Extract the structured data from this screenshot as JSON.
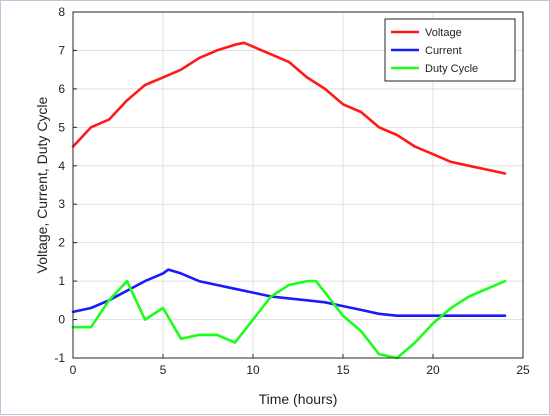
{
  "chart_data": {
    "type": "line",
    "title": "",
    "xlabel": "Time (hours)",
    "ylabel": "Voltage, Current, Duty Cycle",
    "xlim": [
      0,
      25
    ],
    "ylim": [
      -1,
      8
    ],
    "xticks": [
      0,
      5,
      10,
      15,
      20,
      25
    ],
    "yticks": [
      -1,
      0,
      1,
      2,
      3,
      4,
      5,
      6,
      7,
      8
    ],
    "grid": true,
    "legend_position": "top-right",
    "series": [
      {
        "name": "Voltage",
        "color": "#ff1a1a",
        "x": [
          0,
          1,
          2,
          3,
          4,
          5,
          6,
          7,
          8,
          9,
          9.5,
          10,
          11,
          12,
          13,
          14,
          15,
          16,
          17,
          18,
          19,
          20,
          21,
          22,
          23,
          24
        ],
        "values": [
          4.5,
          5.0,
          5.2,
          5.7,
          6.1,
          6.3,
          6.5,
          6.8,
          7.0,
          7.15,
          7.2,
          7.1,
          6.9,
          6.7,
          6.3,
          6.0,
          5.6,
          5.4,
          5.0,
          4.8,
          4.5,
          4.3,
          4.1,
          4.0,
          3.9,
          3.8
        ]
      },
      {
        "name": "Current",
        "color": "#1a1aff",
        "x": [
          0,
          1,
          2,
          3,
          4,
          5,
          5.3,
          6,
          7,
          8,
          9,
          10,
          11,
          12,
          13,
          14,
          15,
          16,
          17,
          18,
          19,
          20,
          21,
          22,
          23,
          24
        ],
        "values": [
          0.2,
          0.3,
          0.5,
          0.75,
          1.0,
          1.2,
          1.3,
          1.2,
          1.0,
          0.9,
          0.8,
          0.7,
          0.6,
          0.55,
          0.5,
          0.45,
          0.35,
          0.25,
          0.15,
          0.1,
          0.1,
          0.1,
          0.1,
          0.1,
          0.1,
          0.1
        ]
      },
      {
        "name": "Duty Cycle",
        "color": "#1aff1a",
        "x": [
          0,
          1,
          2,
          3,
          4,
          5,
          6,
          7,
          8,
          9,
          10,
          11,
          12,
          13,
          13.5,
          14,
          15,
          16,
          17,
          18,
          19,
          20,
          21,
          22,
          23,
          24
        ],
        "values": [
          -0.2,
          -0.2,
          0.5,
          1.0,
          0.0,
          0.3,
          -0.5,
          -0.4,
          -0.4,
          -0.6,
          0.0,
          0.6,
          0.9,
          1.0,
          1.0,
          0.7,
          0.1,
          -0.3,
          -0.9,
          -1.0,
          -0.6,
          -0.1,
          0.3,
          0.6,
          0.8,
          1.0
        ]
      }
    ]
  }
}
